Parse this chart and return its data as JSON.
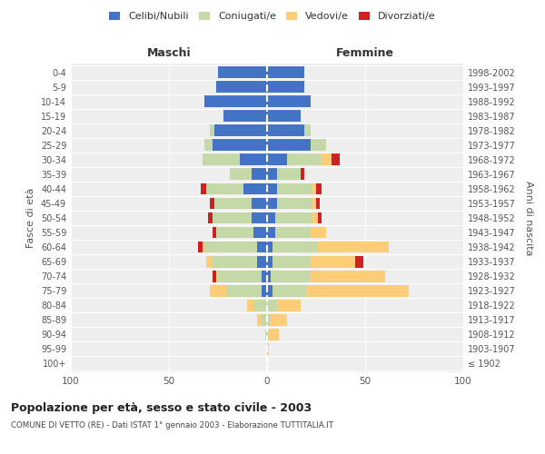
{
  "age_groups": [
    "100+",
    "95-99",
    "90-94",
    "85-89",
    "80-84",
    "75-79",
    "70-74",
    "65-69",
    "60-64",
    "55-59",
    "50-54",
    "45-49",
    "40-44",
    "35-39",
    "30-34",
    "25-29",
    "20-24",
    "15-19",
    "10-14",
    "5-9",
    "0-4"
  ],
  "birth_years": [
    "≤ 1902",
    "1903-1907",
    "1908-1912",
    "1913-1917",
    "1918-1922",
    "1923-1927",
    "1928-1932",
    "1933-1937",
    "1938-1942",
    "1943-1947",
    "1948-1952",
    "1953-1957",
    "1958-1962",
    "1963-1967",
    "1968-1972",
    "1973-1977",
    "1978-1982",
    "1983-1987",
    "1988-1992",
    "1993-1997",
    "1998-2002"
  ],
  "maschi": {
    "celibi": [
      0,
      0,
      0,
      0,
      0,
      3,
      3,
      5,
      5,
      7,
      8,
      8,
      12,
      8,
      14,
      28,
      27,
      22,
      32,
      26,
      25
    ],
    "coniugati": [
      0,
      0,
      1,
      3,
      7,
      18,
      22,
      23,
      27,
      19,
      20,
      19,
      19,
      11,
      19,
      4,
      2,
      0,
      0,
      0,
      0
    ],
    "vedovi": [
      0,
      0,
      0,
      2,
      3,
      8,
      1,
      3,
      1,
      0,
      0,
      0,
      0,
      0,
      0,
      0,
      0,
      0,
      0,
      0,
      0
    ],
    "divorziati": [
      0,
      0,
      0,
      0,
      0,
      0,
      2,
      0,
      2,
      2,
      2,
      2,
      3,
      0,
      0,
      0,
      0,
      0,
      0,
      0,
      0
    ]
  },
  "femmine": {
    "nubili": [
      0,
      0,
      0,
      0,
      0,
      3,
      2,
      3,
      3,
      4,
      4,
      5,
      5,
      5,
      10,
      22,
      19,
      17,
      22,
      19,
      19
    ],
    "coniugate": [
      0,
      0,
      1,
      2,
      5,
      17,
      20,
      19,
      23,
      18,
      19,
      18,
      18,
      12,
      18,
      8,
      3,
      0,
      0,
      0,
      0
    ],
    "vedove": [
      0,
      1,
      5,
      8,
      12,
      52,
      38,
      23,
      36,
      8,
      3,
      2,
      2,
      0,
      5,
      0,
      0,
      0,
      0,
      0,
      0
    ],
    "divorziate": [
      0,
      0,
      0,
      0,
      0,
      0,
      0,
      4,
      0,
      0,
      2,
      2,
      3,
      2,
      4,
      0,
      0,
      0,
      0,
      0,
      0
    ]
  },
  "colors": {
    "celibi": "#4472C4",
    "coniugati": "#C5D9A8",
    "vedovi": "#FFCC77",
    "divorziati": "#CC2222"
  },
  "title": "Popolazione per età, sesso e stato civile - 2003",
  "subtitle": "COMUNE DI VETTO (RE) - Dati ISTAT 1° gennaio 2003 - Elaborazione TUTTITALIA.IT",
  "xlabel_left": "Maschi",
  "xlabel_right": "Femmine",
  "ylabel_left": "Fasce di età",
  "ylabel_right": "Anni di nascita",
  "xlim": 100,
  "bg_axes": "#eeeeee",
  "bg_fig": "#ffffff"
}
